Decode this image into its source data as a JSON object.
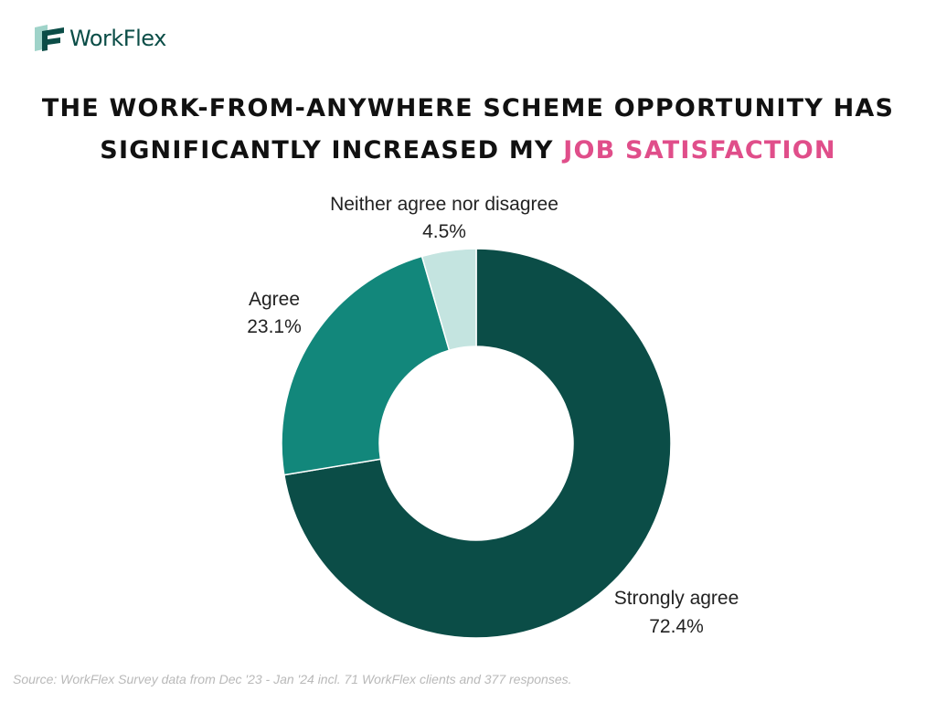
{
  "brand": {
    "name": "WorkFlex",
    "logo_icon": "workflex-logo-icon",
    "color": "#0b4d47"
  },
  "title": {
    "line1": "THE WORK-FROM-ANYWHERE SCHEME OPPORTUNITY HAS",
    "line2_prefix": "SIGNIFICANTLY INCREASED MY ",
    "line2_highlight": "JOB SATISFACTION",
    "highlight_color": "#e04e8a"
  },
  "chart_data": {
    "type": "pie",
    "style": "donut",
    "categories": [
      "Strongly agree",
      "Agree",
      "Neither agree nor disagree"
    ],
    "values": [
      72.4,
      23.1,
      4.5
    ],
    "value_labels": [
      "72.4%",
      "23.1%",
      "4.5%"
    ],
    "colors": [
      "#0b4d47",
      "#12877b",
      "#c4e4e0"
    ],
    "title": "THE WORK-FROM-ANYWHERE SCHEME OPPORTUNITY HAS SIGNIFICANTLY INCREASED MY JOB SATISFACTION"
  },
  "source": "Source: WorkFlex Survey data from Dec '23 - Jan '24 incl. 71 WorkFlex clients and 377 responses."
}
